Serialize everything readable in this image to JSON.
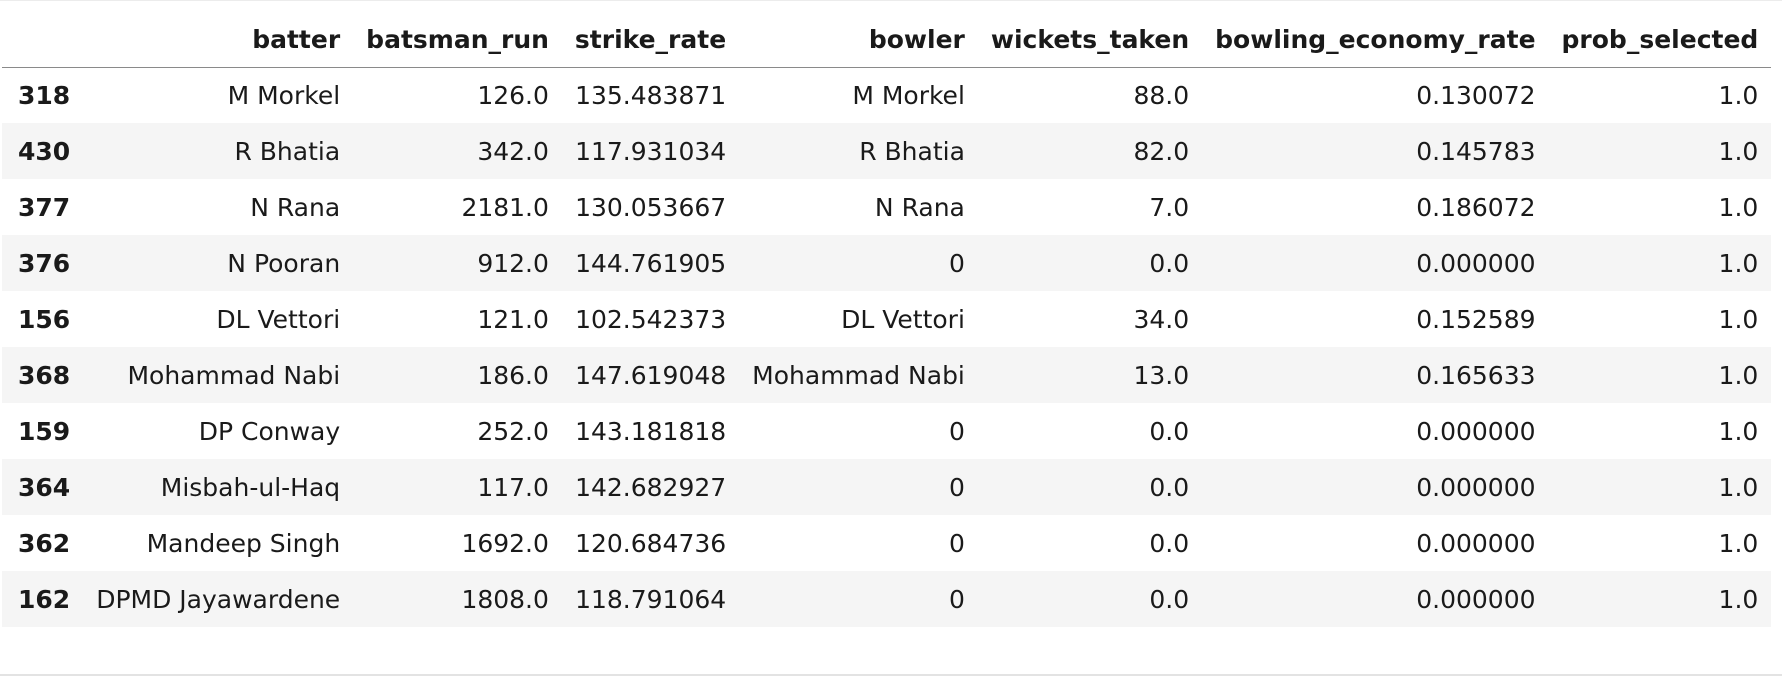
{
  "dataframe": {
    "columns": [
      "",
      "batter",
      "batsman_run",
      "strike_rate",
      "bowler",
      "wickets_taken",
      "bowling_economy_rate",
      "prob_selected"
    ],
    "rows": [
      {
        "index": "318",
        "batter": "M Morkel",
        "batsman_run": "126.0",
        "strike_rate": "135.483871",
        "bowler": "M Morkel",
        "wickets_taken": "88.0",
        "bowling_economy_rate": "0.130072",
        "prob_selected": "1.0"
      },
      {
        "index": "430",
        "batter": "R Bhatia",
        "batsman_run": "342.0",
        "strike_rate": "117.931034",
        "bowler": "R Bhatia",
        "wickets_taken": "82.0",
        "bowling_economy_rate": "0.145783",
        "prob_selected": "1.0"
      },
      {
        "index": "377",
        "batter": "N Rana",
        "batsman_run": "2181.0",
        "strike_rate": "130.053667",
        "bowler": "N Rana",
        "wickets_taken": "7.0",
        "bowling_economy_rate": "0.186072",
        "prob_selected": "1.0"
      },
      {
        "index": "376",
        "batter": "N Pooran",
        "batsman_run": "912.0",
        "strike_rate": "144.761905",
        "bowler": "0",
        "wickets_taken": "0.0",
        "bowling_economy_rate": "0.000000",
        "prob_selected": "1.0"
      },
      {
        "index": "156",
        "batter": "DL Vettori",
        "batsman_run": "121.0",
        "strike_rate": "102.542373",
        "bowler": "DL Vettori",
        "wickets_taken": "34.0",
        "bowling_economy_rate": "0.152589",
        "prob_selected": "1.0"
      },
      {
        "index": "368",
        "batter": "Mohammad Nabi",
        "batsman_run": "186.0",
        "strike_rate": "147.619048",
        "bowler": "Mohammad Nabi",
        "wickets_taken": "13.0",
        "bowling_economy_rate": "0.165633",
        "prob_selected": "1.0"
      },
      {
        "index": "159",
        "batter": "DP Conway",
        "batsman_run": "252.0",
        "strike_rate": "143.181818",
        "bowler": "0",
        "wickets_taken": "0.0",
        "bowling_economy_rate": "0.000000",
        "prob_selected": "1.0"
      },
      {
        "index": "364",
        "batter": "Misbah-ul-Haq",
        "batsman_run": "117.0",
        "strike_rate": "142.682927",
        "bowler": "0",
        "wickets_taken": "0.0",
        "bowling_economy_rate": "0.000000",
        "prob_selected": "1.0"
      },
      {
        "index": "362",
        "batter": "Mandeep Singh",
        "batsman_run": "1692.0",
        "strike_rate": "120.684736",
        "bowler": "0",
        "wickets_taken": "0.0",
        "bowling_economy_rate": "0.000000",
        "prob_selected": "1.0"
      },
      {
        "index": "162",
        "batter": "DPMD Jayawardene",
        "batsman_run": "1808.0",
        "strike_rate": "118.791064",
        "bowler": "0",
        "wickets_taken": "0.0",
        "bowling_economy_rate": "0.000000",
        "prob_selected": "1.0"
      }
    ]
  }
}
